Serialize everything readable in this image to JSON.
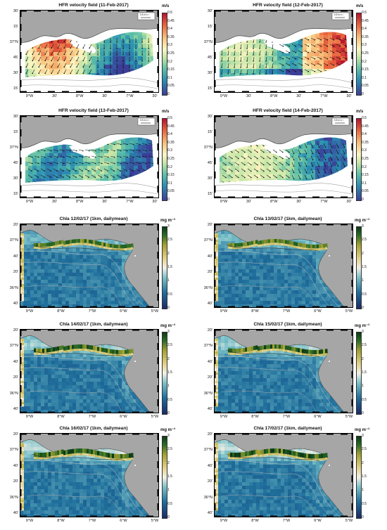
{
  "velocity_panels": [
    {
      "title": "HFR velocity field (11-Feb-2017)",
      "unit": "m/s",
      "style": "a"
    },
    {
      "title": "HFR velocity field (12-Feb-2017)",
      "unit": "m/s",
      "style": "b"
    },
    {
      "title": "HFR velocity field (13-Feb-2017)",
      "unit": "m/s",
      "style": "c"
    },
    {
      "title": "HFR velocity field (14-Feb-2017)",
      "unit": "m/s",
      "style": "d"
    }
  ],
  "chla_panels": [
    {
      "title": "Chla 12/02/17 (1km, dailymean)",
      "unit": "mg m⁻³"
    },
    {
      "title": "Chla 13/02/17 (1km, dailymean)",
      "unit": "mg m⁻³"
    },
    {
      "title": "Chla 14/02/17 (1km, dailymean)",
      "unit": "mg m⁻³"
    },
    {
      "title": "Chla 15/02/17 (1km, dailymean)",
      "unit": "mg m⁻³"
    },
    {
      "title": "Chla 16/02/17 (1km, dailymean)",
      "unit": "mg m⁻³"
    },
    {
      "title": "Chla 17/02/17 (1km, dailymean)",
      "unit": "mg m⁻³"
    }
  ],
  "velocity_colorbar_ticks": [
    "0.5",
    "0.45",
    "0.4",
    "0.35",
    "0.3",
    "0.25",
    "0.2",
    "0.15",
    "0.1",
    "0.05",
    "0"
  ],
  "chla_colorbar_ticks": [
    "3",
    "2.5",
    "2",
    "1.5",
    "1",
    "0.5",
    "0"
  ],
  "velocity_axes": {
    "y_labels": [
      "30'",
      "15'",
      "37°N",
      "45'",
      "30'",
      "15'"
    ],
    "x_labels": [
      "9°W",
      "30'",
      "8°W",
      "30'",
      "7°W",
      "30'"
    ],
    "scale_label": "0.5 m s⁻¹"
  },
  "chla_axes": {
    "y_labels": [
      "20'",
      "37°N",
      "40'",
      "20'",
      "36°N",
      "40'"
    ],
    "x_labels": [
      "9°W",
      "8°W",
      "7°W",
      "6°W",
      "5°W"
    ]
  },
  "colors": {
    "land": "#a6a6a6",
    "ocean_deep": "#1f3f8c",
    "velocity_colormap": [
      "#3b3d97",
      "#2a8fb3",
      "#5fc0a7",
      "#c6e6a7",
      "#fbf6c3",
      "#f9c27b",
      "#e8623c",
      "#b5122e"
    ],
    "chla_colormap": [
      "#1a2a68",
      "#1f6f9c",
      "#7cc1c9",
      "#f4f0e6",
      "#e2cf83",
      "#a3a02f",
      "#2a6a26",
      "#0b3b16"
    ]
  }
}
